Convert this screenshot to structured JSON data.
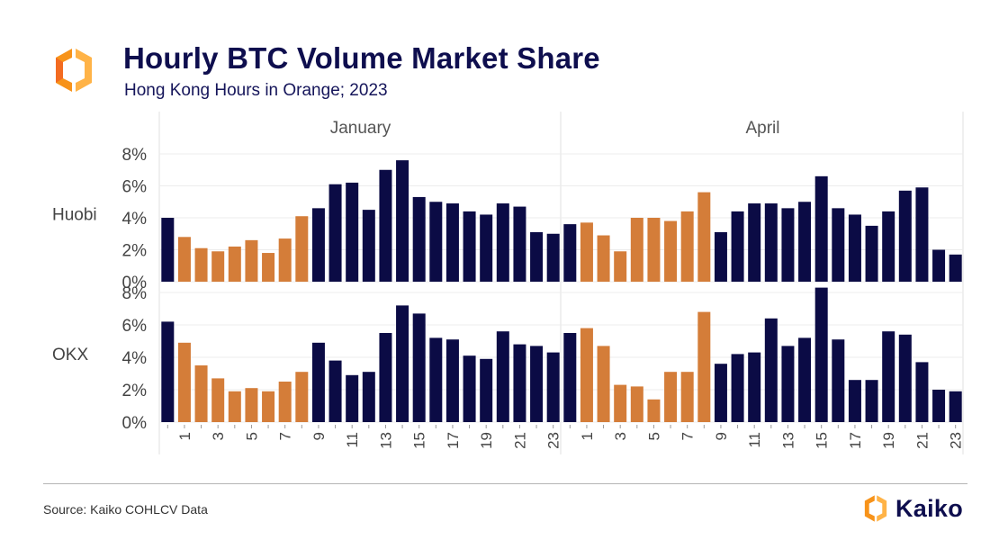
{
  "header": {
    "title": "Hourly BTC Volume Market Share",
    "subtitle": "Hong Kong Hours in Orange; 2023"
  },
  "footer": {
    "source": "Source: Kaiko COHLCV Data",
    "brand": "Kaiko"
  },
  "colors": {
    "hk_hours": "#d47d39",
    "other_hours": "#0b0b45",
    "title": "#0e0e4e",
    "grid": "#ececec",
    "strip_text": "#555555",
    "logo_orange": "#f7931a",
    "logo_orange_light": "#ffb347"
  },
  "icons": {
    "logo": "kaiko-logo-icon",
    "brand": "kaiko-brand-icon"
  },
  "chart_data": {
    "type": "bar",
    "title": "Hourly BTC Volume Market Share",
    "subtitle": "Hong Kong Hours in Orange; 2023",
    "columns": [
      "January",
      "April"
    ],
    "rows": [
      "Huobi",
      "OKX"
    ],
    "hours": [
      0,
      1,
      2,
      3,
      4,
      5,
      6,
      7,
      8,
      9,
      10,
      11,
      12,
      13,
      14,
      15,
      16,
      17,
      18,
      19,
      20,
      21,
      22,
      23
    ],
    "x_tick_labels": [
      "1",
      "3",
      "5",
      "7",
      "9",
      "11",
      "13",
      "15",
      "17",
      "19",
      "21",
      "23"
    ],
    "y_tick_labels": [
      "0%",
      "2%",
      "4%",
      "6%",
      "8%"
    ],
    "ylim": [
      0,
      8
    ],
    "y_unit": "%",
    "highlight_hours": [
      1,
      2,
      3,
      4,
      5,
      6,
      7,
      8
    ],
    "highlight_label": "Hong Kong Hours in Orange",
    "grid": true,
    "panels": [
      {
        "row": "Huobi",
        "column": "January",
        "values": [
          4.0,
          2.8,
          2.1,
          1.9,
          2.2,
          2.6,
          1.8,
          2.7,
          4.1,
          4.6,
          6.1,
          6.2,
          4.5,
          7.0,
          7.6,
          5.3,
          5.0,
          4.9,
          4.4,
          4.2,
          4.9,
          4.7,
          3.1,
          3.0
        ]
      },
      {
        "row": "Huobi",
        "column": "April",
        "values": [
          3.6,
          3.7,
          2.9,
          1.9,
          4.0,
          4.0,
          3.8,
          4.4,
          5.6,
          3.1,
          4.4,
          4.9,
          4.9,
          4.6,
          5.0,
          6.6,
          4.6,
          4.2,
          3.5,
          4.4,
          5.7,
          5.9,
          2.0,
          1.7
        ]
      },
      {
        "row": "OKX",
        "column": "January",
        "values": [
          6.2,
          4.9,
          3.5,
          2.7,
          1.9,
          2.1,
          1.9,
          2.5,
          3.1,
          4.9,
          3.8,
          2.9,
          3.1,
          5.5,
          7.2,
          6.7,
          5.2,
          5.1,
          4.1,
          3.9,
          5.6,
          4.8,
          4.7,
          4.3
        ]
      },
      {
        "row": "OKX",
        "column": "April",
        "values": [
          5.5,
          5.8,
          4.7,
          2.3,
          2.2,
          1.4,
          3.1,
          3.1,
          6.8,
          3.6,
          4.2,
          4.3,
          6.4,
          4.7,
          5.2,
          8.3,
          5.1,
          2.6,
          2.6,
          5.6,
          5.4,
          3.7,
          2.0,
          1.9
        ]
      }
    ]
  }
}
